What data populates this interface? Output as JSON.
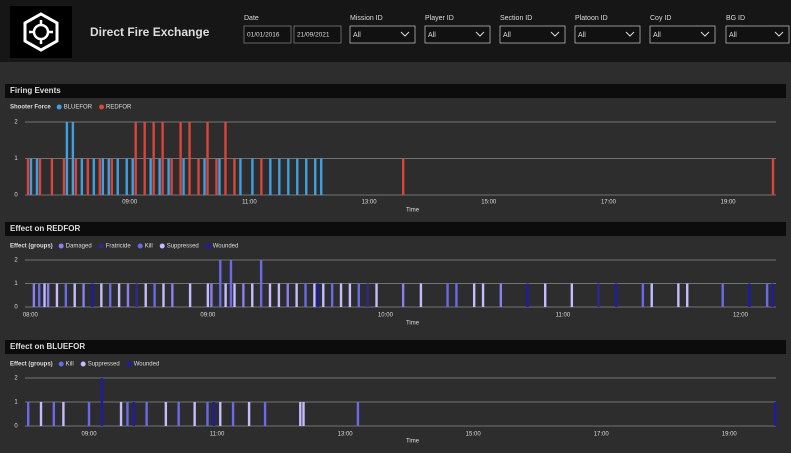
{
  "header": {
    "title": "Direct Fire Exchange"
  },
  "filters": [
    {
      "label": "Date",
      "values": [
        "01/01/2016",
        "21/09/2021"
      ]
    },
    {
      "label": "Mission ID",
      "value": "All"
    },
    {
      "label": "Player ID",
      "value": "All"
    },
    {
      "label": "Section ID",
      "value": "All"
    },
    {
      "label": "Platoon ID",
      "value": "All"
    },
    {
      "label": "Coy ID",
      "value": "All"
    },
    {
      "label": "BG ID",
      "value": "All"
    }
  ],
  "chart_data": [
    {
      "type": "bar",
      "title": "Firing Events",
      "legend_title": "Shooter Force",
      "xlabel": "Time",
      "xlim": [
        7.25,
        19.8
      ],
      "ylim": [
        0,
        2
      ],
      "yticks": [
        0,
        1,
        2
      ],
      "grid": true,
      "xticks": [
        {
          "value": 9,
          "label": "09:00"
        },
        {
          "value": 11,
          "label": "11:00"
        },
        {
          "value": 13,
          "label": "13:00"
        },
        {
          "value": 15,
          "label": "15:00"
        },
        {
          "value": 17,
          "label": "17:00"
        },
        {
          "value": 19,
          "label": "19:00"
        }
      ],
      "series": [
        {
          "name": "BLUEFOR",
          "color": "#3f9fe0",
          "x": [
            7.35,
            7.45,
            7.95,
            8.05,
            8.2,
            8.4,
            8.55,
            8.65,
            8.8,
            8.95,
            9.05,
            9.35,
            9.5,
            9.65,
            9.9,
            10.25,
            10.5,
            10.85,
            11.05,
            11.35,
            11.5,
            11.65,
            11.8,
            11.95,
            12.1,
            12.2
          ],
          "values": [
            1,
            1,
            2,
            2,
            1,
            1,
            1,
            1,
            1,
            1,
            1,
            1,
            1,
            1,
            1,
            1,
            1,
            1,
            1,
            1,
            1,
            1,
            1,
            1,
            1,
            1
          ]
        },
        {
          "name": "REDFOR",
          "color": "#d9453a",
          "x": [
            7.3,
            7.5,
            7.7,
            7.9,
            8.1,
            8.3,
            8.5,
            8.7,
            9.1,
            9.25,
            9.4,
            9.55,
            9.7,
            9.85,
            10.0,
            10.15,
            10.3,
            10.45,
            10.6,
            10.75,
            11.2,
            13.57,
            19.75
          ],
          "values": [
            1,
            1,
            1,
            1,
            1,
            1,
            1,
            1,
            2,
            2,
            2,
            2,
            1,
            2,
            2,
            1,
            2,
            1,
            2,
            1,
            1,
            1,
            1
          ]
        }
      ]
    },
    {
      "type": "bar",
      "title": "Effect on REDFOR",
      "legend_title": "Effect (groups)",
      "xlabel": "Time",
      "xlim": [
        7.97,
        12.2
      ],
      "ylim": [
        0,
        2
      ],
      "yticks": [
        0,
        1,
        2
      ],
      "grid": true,
      "xticks": [
        {
          "value": 8,
          "label": "08:00"
        },
        {
          "value": 9,
          "label": "09:00"
        },
        {
          "value": 10,
          "label": "10:00"
        },
        {
          "value": 11,
          "label": "11:00"
        },
        {
          "value": 12,
          "label": "12:00"
        }
      ],
      "series": [
        {
          "name": "Damaged",
          "color": "#8a7ff0",
          "x": [
            8.02,
            8.1,
            8.3,
            8.55,
            8.8,
            9.02,
            9.2,
            9.45,
            10.1,
            10.65
          ],
          "values": [
            1,
            1,
            1,
            1,
            1,
            1,
            1,
            1,
            1,
            1
          ]
        },
        {
          "name": "Fratricide",
          "color": "#2a2a8f",
          "x": [
            8.6,
            9.9,
            11.2
          ],
          "values": [
            1,
            1,
            1
          ]
        },
        {
          "name": "Kill",
          "color": "#6a6ae8",
          "x": [
            8.05,
            8.2,
            8.45,
            8.7,
            9.07,
            9.13,
            9.3,
            9.55,
            9.7,
            9.85,
            10.35,
            10.4,
            11.45,
            11.9,
            12.15
          ],
          "values": [
            1,
            1,
            1,
            1,
            2,
            2,
            2,
            1,
            1,
            1,
            1,
            1,
            1,
            1,
            1
          ]
        },
        {
          "name": "Suppressed",
          "color": "#c4bcff",
          "x": [
            8.08,
            8.15,
            8.25,
            8.4,
            8.5,
            8.65,
            8.75,
            8.9,
            9.0,
            9.1,
            9.15,
            9.25,
            9.35,
            9.4,
            9.5,
            9.6,
            9.65,
            9.75,
            9.8,
            9.95,
            10.2,
            10.5,
            10.55,
            10.9,
            11.05,
            11.5,
            11.65,
            11.7
          ],
          "values": [
            1,
            1,
            1,
            1,
            1,
            1,
            1,
            1,
            1,
            1,
            1,
            1,
            1,
            1,
            1,
            1,
            1,
            1,
            1,
            1,
            1,
            1,
            1,
            1,
            1,
            1,
            1,
            1
          ]
        },
        {
          "name": "Wounded",
          "color": "#1c1ca8",
          "x": [
            8.35,
            9.62,
            10.8,
            11.3,
            12.05,
            12.18
          ],
          "values": [
            1,
            1,
            1,
            1,
            1,
            1
          ]
        }
      ]
    },
    {
      "type": "bar",
      "title": "Effect on BLUEFOR",
      "legend_title": "Effect (groups)",
      "xlabel": "Time",
      "xlim": [
        8.0,
        19.73
      ],
      "ylim": [
        0,
        2
      ],
      "yticks": [
        0,
        1,
        2
      ],
      "grid": true,
      "xticks": [
        {
          "value": 9,
          "label": "09:00"
        },
        {
          "value": 11,
          "label": "11:00"
        },
        {
          "value": 13,
          "label": "13:00"
        },
        {
          "value": 15,
          "label": "15:00"
        },
        {
          "value": 17,
          "label": "17:00"
        },
        {
          "value": 19,
          "label": "19:00"
        }
      ],
      "series": [
        {
          "name": "Kill",
          "color": "#6a6ae8",
          "x": [
            8.05,
            8.45,
            9.0,
            9.6,
            9.9,
            10.4,
            10.85,
            11.25,
            11.75,
            13.2
          ],
          "values": [
            1,
            1,
            1,
            1,
            1,
            1,
            1,
            1,
            1,
            1
          ]
        },
        {
          "name": "Suppressed",
          "color": "#c4bcff",
          "x": [
            8.25,
            8.6,
            9.5,
            10.2,
            10.65,
            11.05,
            11.5,
            12.3,
            12.35
          ],
          "values": [
            1,
            1,
            1,
            1,
            1,
            1,
            1,
            1,
            1
          ]
        },
        {
          "name": "Wounded",
          "color": "#1c1ca8",
          "x": [
            9.2,
            9.7,
            10.95,
            19.72
          ],
          "values": [
            2,
            1,
            1,
            1
          ]
        }
      ]
    }
  ]
}
